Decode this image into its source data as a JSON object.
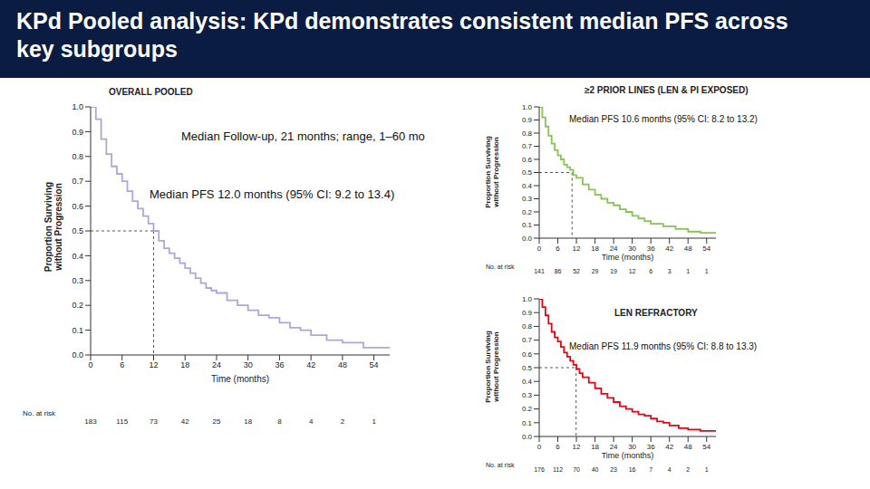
{
  "title": "KPd Pooled analysis: KPd demonstrates consistent median PFS across key subgroups",
  "chart_data": [
    {
      "type": "line",
      "title": "OVERALL POOLED",
      "annotations": [
        "Median Follow-up, 21 months; range, 1–60 mo",
        "Median PFS 12.0 months (95% CI: 9.2 to 13.4)"
      ],
      "x_label": "Time (months)",
      "y_label": "Proportion Surviving without Progression",
      "x": [
        0,
        1,
        2,
        3,
        4,
        5,
        6,
        7,
        8,
        9,
        10,
        11,
        12,
        13,
        14,
        15,
        16,
        17,
        18,
        19,
        20,
        21,
        22,
        23,
        24,
        26,
        28,
        30,
        32,
        34,
        36,
        38,
        40,
        42,
        45,
        48,
        52,
        57
      ],
      "values": [
        1.0,
        0.95,
        0.87,
        0.81,
        0.76,
        0.73,
        0.7,
        0.66,
        0.62,
        0.59,
        0.56,
        0.53,
        0.5,
        0.46,
        0.43,
        0.41,
        0.39,
        0.37,
        0.35,
        0.33,
        0.31,
        0.29,
        0.27,
        0.26,
        0.25,
        0.22,
        0.2,
        0.18,
        0.16,
        0.15,
        0.13,
        0.11,
        0.1,
        0.08,
        0.06,
        0.05,
        0.03,
        0.03
      ],
      "color": "#aaa7dd",
      "line_style": "step",
      "grid": false,
      "xlim": [
        0,
        57
      ],
      "ylim": [
        0,
        1
      ],
      "xticks": [
        0,
        6,
        12,
        18,
        24,
        30,
        36,
        42,
        48,
        54
      ],
      "yticks": [
        {
          "value": 0,
          "label": "0.0"
        },
        0.1,
        0.2,
        0.3,
        0.4,
        0.5,
        0.6,
        0.7,
        0.8,
        0.9,
        {
          "value": 1,
          "label": "1.0"
        }
      ],
      "median": {
        "x": 12.0,
        "y": 0.5
      },
      "at_risk_label": "No. at risk",
      "at_risk": {
        "times": [
          0,
          6,
          12,
          18,
          24,
          30,
          36,
          42,
          48,
          54
        ],
        "counts": [
          183,
          115,
          73,
          42,
          25,
          18,
          8,
          4,
          2,
          1
        ]
      }
    },
    {
      "type": "line",
      "title": "≥2 PRIOR LINES (LEN & PI EXPOSED)",
      "annotations": [
        "Median PFS 10.6 months (95% CI: 8.2 to 13.2)"
      ],
      "x_label": "Time (months)",
      "y_label": "Proportion Surviving without Progression",
      "x": [
        0,
        1,
        2,
        3,
        4,
        5,
        6,
        7,
        8,
        9,
        10,
        11,
        12,
        14,
        16,
        18,
        20,
        22,
        24,
        26,
        28,
        30,
        32,
        34,
        36,
        40,
        44,
        48,
        52,
        57
      ],
      "values": [
        1.0,
        0.92,
        0.85,
        0.78,
        0.72,
        0.67,
        0.63,
        0.6,
        0.56,
        0.54,
        0.52,
        0.48,
        0.46,
        0.41,
        0.37,
        0.33,
        0.3,
        0.27,
        0.25,
        0.22,
        0.2,
        0.17,
        0.15,
        0.13,
        0.11,
        0.09,
        0.07,
        0.05,
        0.04,
        0.04
      ],
      "color": "#86c553",
      "line_style": "step",
      "grid": false,
      "xlim": [
        0,
        57
      ],
      "ylim": [
        0,
        1
      ],
      "xticks": [
        0,
        6,
        12,
        18,
        24,
        30,
        36,
        42,
        48,
        54
      ],
      "yticks": [
        {
          "value": 0,
          "label": "0.0"
        },
        0.1,
        0.2,
        0.3,
        0.4,
        0.5,
        0.6,
        0.7,
        0.8,
        0.9,
        {
          "value": 1,
          "label": "1.0"
        }
      ],
      "median": {
        "x": 10.6,
        "y": 0.5
      },
      "at_risk_label": "No. at risk",
      "at_risk": {
        "times": [
          0,
          6,
          12,
          18,
          24,
          30,
          36,
          42,
          48,
          54
        ],
        "counts": [
          141,
          86,
          52,
          29,
          19,
          12,
          6,
          3,
          1,
          1
        ]
      }
    },
    {
      "type": "line",
      "title": "LEN REFRACTORY",
      "annotations": [
        "Median PFS 11.9 months (95% CI: 8.8 to 13.3)"
      ],
      "x_label": "Time (months)",
      "y_label": "Proportion Surviving without Progression",
      "x": [
        0,
        1,
        2,
        3,
        4,
        5,
        6,
        7,
        8,
        9,
        10,
        11,
        12,
        13,
        14,
        16,
        18,
        20,
        22,
        24,
        26,
        28,
        30,
        32,
        34,
        36,
        38,
        40,
        42,
        45,
        48,
        52,
        57
      ],
      "values": [
        1.0,
        0.94,
        0.88,
        0.82,
        0.76,
        0.72,
        0.69,
        0.65,
        0.61,
        0.58,
        0.55,
        0.52,
        0.49,
        0.46,
        0.43,
        0.39,
        0.35,
        0.31,
        0.28,
        0.25,
        0.22,
        0.2,
        0.18,
        0.16,
        0.15,
        0.13,
        0.11,
        0.1,
        0.08,
        0.06,
        0.05,
        0.04,
        0.04
      ],
      "color": "#e30613",
      "line_style": "step",
      "grid": false,
      "xlim": [
        0,
        57
      ],
      "ylim": [
        0,
        1
      ],
      "xticks": [
        0,
        6,
        12,
        18,
        24,
        30,
        36,
        42,
        48,
        54
      ],
      "yticks": [
        {
          "value": 0,
          "label": "0.0"
        },
        0.1,
        0.2,
        0.3,
        0.4,
        0.5,
        0.6,
        0.7,
        0.8,
        0.9,
        {
          "value": 1,
          "label": "1.0"
        }
      ],
      "median": {
        "x": 11.9,
        "y": 0.5
      },
      "at_risk_label": "No. at risk",
      "at_risk": {
        "times": [
          0,
          6,
          12,
          18,
          24,
          30,
          36,
          42,
          48,
          54
        ],
        "counts": [
          176,
          112,
          70,
          40,
          23,
          16,
          7,
          4,
          2,
          1
        ]
      }
    }
  ]
}
